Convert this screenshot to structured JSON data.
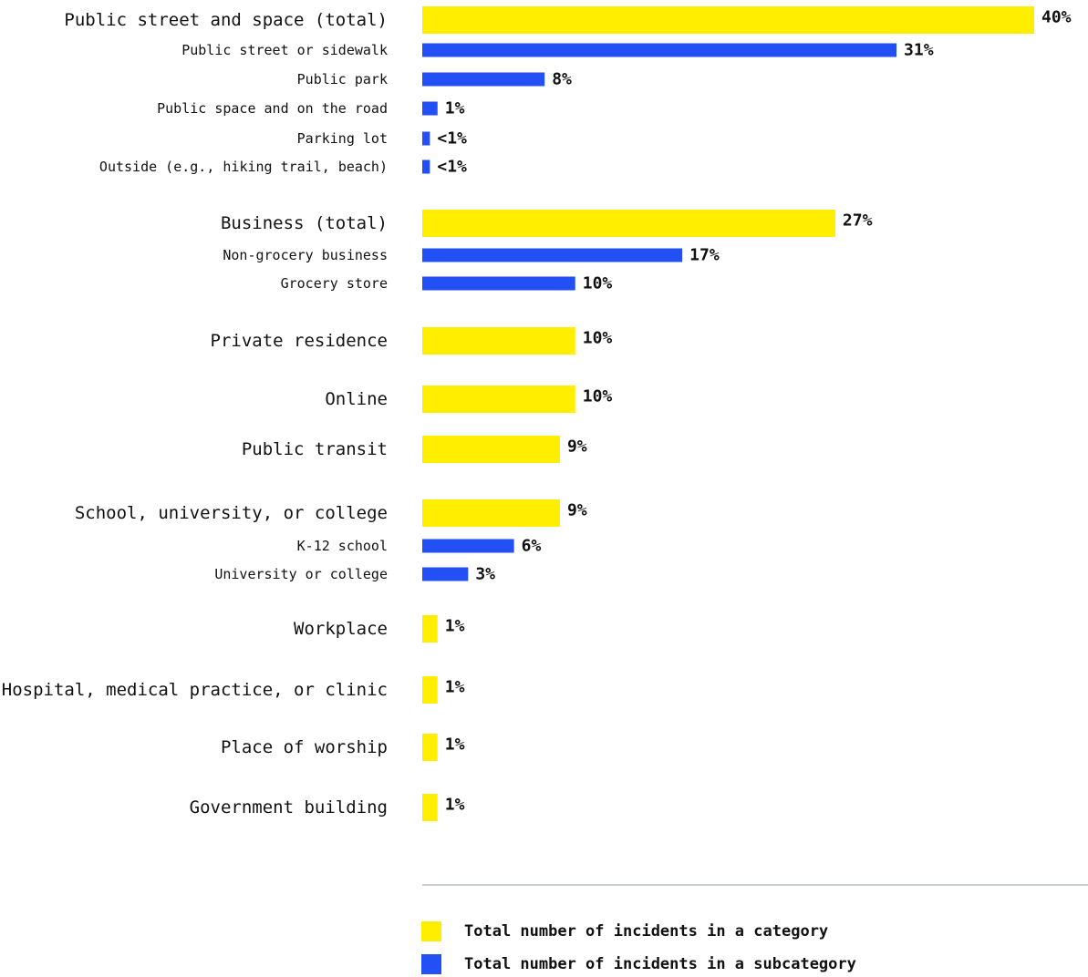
{
  "chart_data": {
    "type": "bar",
    "orientation": "horizontal",
    "title": "",
    "xlabel": "",
    "ylabel": "",
    "xlim": [
      0,
      40
    ],
    "grid": false,
    "colors": {
      "category": "#FFEE00",
      "subcategory": "#2350F5",
      "divider": "#B6BEC8",
      "text": "#111111"
    },
    "rows": [
      {
        "label": "Public street and space (total)",
        "value": 40,
        "display": "40%",
        "kind": "category"
      },
      {
        "label": "Public street or sidewalk",
        "value": 31,
        "display": "31%",
        "kind": "subcategory"
      },
      {
        "label": "Public park",
        "value": 8,
        "display": "8%",
        "kind": "subcategory"
      },
      {
        "label": "Public space and on the road",
        "value": 1,
        "display": "1%",
        "kind": "subcategory"
      },
      {
        "label": "Parking lot",
        "value": 0.5,
        "display": "<1%",
        "kind": "subcategory"
      },
      {
        "label": "Outside (e.g., hiking trail, beach)",
        "value": 0.5,
        "display": "<1%",
        "kind": "subcategory"
      },
      {
        "label": "Business (total)",
        "value": 27,
        "display": "27%",
        "kind": "category"
      },
      {
        "label": "Non-grocery business",
        "value": 17,
        "display": "17%",
        "kind": "subcategory"
      },
      {
        "label": "Grocery store",
        "value": 10,
        "display": "10%",
        "kind": "subcategory"
      },
      {
        "label": "Private residence",
        "value": 10,
        "display": "10%",
        "kind": "category"
      },
      {
        "label": "Online",
        "value": 10,
        "display": "10%",
        "kind": "category"
      },
      {
        "label": "Public transit",
        "value": 9,
        "display": "9%",
        "kind": "category"
      },
      {
        "label": "School, university, or college",
        "value": 9,
        "display": "9%",
        "kind": "category"
      },
      {
        "label": "K-12 school",
        "value": 6,
        "display": "6%",
        "kind": "subcategory"
      },
      {
        "label": "University or college",
        "value": 3,
        "display": "3%",
        "kind": "subcategory"
      },
      {
        "label": "Workplace",
        "value": 1,
        "display": "1%",
        "kind": "category"
      },
      {
        "label": "Hospital, medical practice, or clinic",
        "value": 1,
        "display": "1%",
        "kind": "category"
      },
      {
        "label": "Place of worship",
        "value": 1,
        "display": "1%",
        "kind": "category"
      },
      {
        "label": "Government building",
        "value": 1,
        "display": "1%",
        "kind": "category"
      }
    ],
    "legend": [
      {
        "kind": "category",
        "label": "Total number of incidents in a category"
      },
      {
        "kind": "subcategory",
        "label": "Total number of incidents in a subcategory"
      }
    ],
    "legend_position": "bottom"
  }
}
